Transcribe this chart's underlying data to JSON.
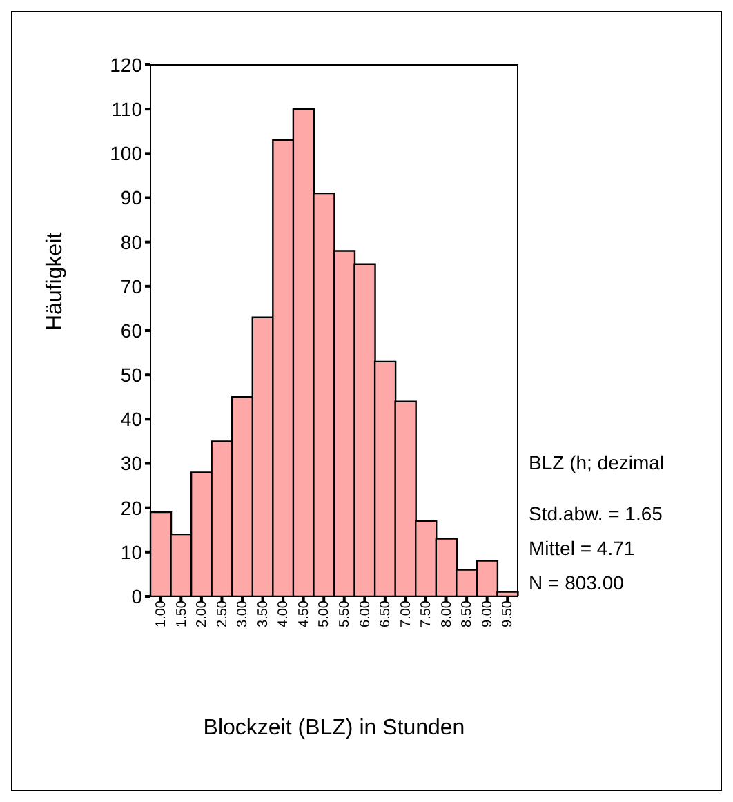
{
  "chart_data": {
    "type": "bar",
    "xlabel": "Blockzeit (BLZ) in Stunden",
    "ylabel": "Häufigkeit",
    "categories": [
      "1.00",
      "1.50",
      "2.00",
      "2.50",
      "3.00",
      "3.50",
      "4.00",
      "4.50",
      "5.00",
      "5.50",
      "6.00",
      "6.50",
      "7.00",
      "7.50",
      "8.00",
      "8.50",
      "9.00",
      "9.50"
    ],
    "values": [
      19,
      14,
      28,
      35,
      45,
      63,
      103,
      110,
      91,
      78,
      75,
      53,
      44,
      17,
      13,
      6,
      8,
      1
    ],
    "color": "#ffa8a8",
    "ylim": [
      0,
      120
    ],
    "yticks": [
      0,
      10,
      20,
      30,
      40,
      50,
      60,
      70,
      80,
      90,
      100,
      110,
      120
    ],
    "grid": false,
    "annotations": [
      "BLZ (h; dezimal",
      "Std.abw. = 1.65",
      "Mittel = 4.71",
      "N = 803.00"
    ]
  }
}
